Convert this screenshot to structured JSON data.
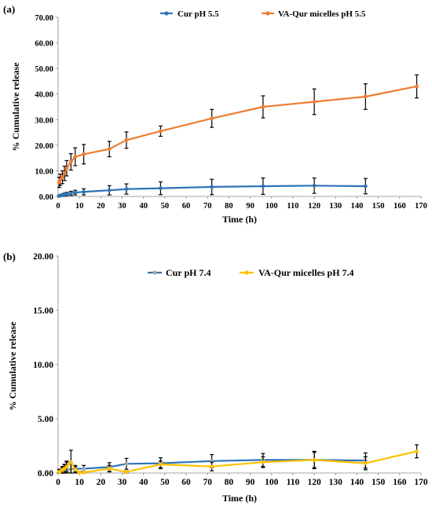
{
  "panels": [
    {
      "label": "(a)"
    },
    {
      "label": "(b)"
    }
  ],
  "chart_data": [
    {
      "type": "line",
      "panel_label": "(a)",
      "xlabel": "Time (h)",
      "ylabel": "% Cumulative release",
      "xlim": [
        0,
        170
      ],
      "ylim": [
        0,
        70
      ],
      "x_ticks": [
        0,
        10,
        20,
        30,
        40,
        50,
        60,
        70,
        80,
        90,
        100,
        110,
        120,
        130,
        140,
        150,
        160,
        170
      ],
      "y_ticks": [
        0,
        10,
        20,
        30,
        40,
        50,
        60,
        70
      ],
      "y_tick_labels": [
        "0.00",
        "10.00",
        "20.00",
        "30.00",
        "40.00",
        "50.00",
        "60.00",
        "70.00"
      ],
      "grid": false,
      "legend_position": "top",
      "series": [
        {
          "name": "Cur pH 5.5",
          "color": "#2e74b5",
          "x": [
            0.5,
            1,
            2,
            3,
            4,
            6,
            8,
            12,
            24,
            32,
            48,
            72,
            96,
            120,
            144
          ],
          "y": [
            0.2,
            0.3,
            0.5,
            0.7,
            0.9,
            1.2,
            1.5,
            1.8,
            2.4,
            2.9,
            3.2,
            3.7,
            4.0,
            4.2,
            4.0
          ],
          "err": [
            0.3,
            0.4,
            0.5,
            0.6,
            0.7,
            0.8,
            0.9,
            1.2,
            1.8,
            2.0,
            2.5,
            3.0,
            3.2,
            3.0,
            3.0
          ]
        },
        {
          "name": "VA-Qur micelles pH 5.5",
          "color": "#ed7d31",
          "x": [
            0.5,
            1,
            2,
            3,
            4,
            6,
            8,
            12,
            24,
            32,
            48,
            72,
            96,
            120,
            144,
            168
          ],
          "y": [
            5.5,
            6.5,
            7.5,
            9.0,
            11.0,
            13.5,
            15.5,
            16.5,
            18.5,
            22.0,
            25.5,
            30.5,
            35.0,
            37.0,
            39.0,
            43.0
          ],
          "err": [
            2.0,
            2.2,
            2.5,
            2.8,
            3.0,
            3.2,
            3.5,
            3.8,
            3.0,
            3.2,
            2.0,
            3.5,
            4.3,
            5.0,
            5.0,
            4.5
          ]
        }
      ]
    },
    {
      "type": "line",
      "panel_label": "(b)",
      "xlabel": "Time (h)",
      "ylabel": "% Cumulative release",
      "xlim": [
        0,
        170
      ],
      "ylim": [
        0,
        20
      ],
      "x_ticks": [
        0,
        10,
        20,
        30,
        40,
        50,
        60,
        70,
        80,
        90,
        100,
        110,
        120,
        130,
        140,
        150,
        160,
        170
      ],
      "y_ticks": [
        0,
        5,
        10,
        15,
        20
      ],
      "y_tick_labels": [
        "0.00",
        "5.00",
        "10.00",
        "15.00",
        "20.00"
      ],
      "grid": false,
      "legend_position": "top",
      "series": [
        {
          "name": "Cur pH 7.4",
          "color": "#2e74b5",
          "marker_color": "#a5a5a5",
          "x": [
            0.5,
            1,
            2,
            3,
            4,
            6,
            8,
            12,
            24,
            32,
            48,
            72,
            96,
            120,
            144
          ],
          "y": [
            0.1,
            0.15,
            0.2,
            0.25,
            0.3,
            0.35,
            0.4,
            0.4,
            0.55,
            0.85,
            0.9,
            1.1,
            1.2,
            1.2,
            1.15
          ],
          "err": [
            0.2,
            0.2,
            0.3,
            0.5,
            0.7,
            0.5,
            0.3,
            0.3,
            0.4,
            0.5,
            0.5,
            0.6,
            0.6,
            0.7,
            0.7
          ]
        },
        {
          "name": "VA-Qur micelles pH 7.4",
          "color": "#ffc000",
          "x": [
            0.5,
            1,
            2,
            3,
            4,
            6,
            8,
            10,
            12,
            24,
            32,
            48,
            72,
            96,
            120,
            144,
            168
          ],
          "y": [
            0.1,
            0.15,
            0.3,
            0.4,
            0.6,
            1.0,
            0.3,
            0.05,
            0.05,
            0.4,
            0.1,
            0.8,
            0.6,
            1.0,
            1.2,
            0.9,
            2.0
          ],
          "err": [
            0.2,
            0.2,
            0.3,
            0.4,
            0.5,
            1.1,
            0.3,
            0.1,
            0.1,
            0.3,
            0.1,
            0.3,
            0.4,
            0.5,
            0.8,
            0.6,
            0.6
          ]
        }
      ]
    }
  ]
}
